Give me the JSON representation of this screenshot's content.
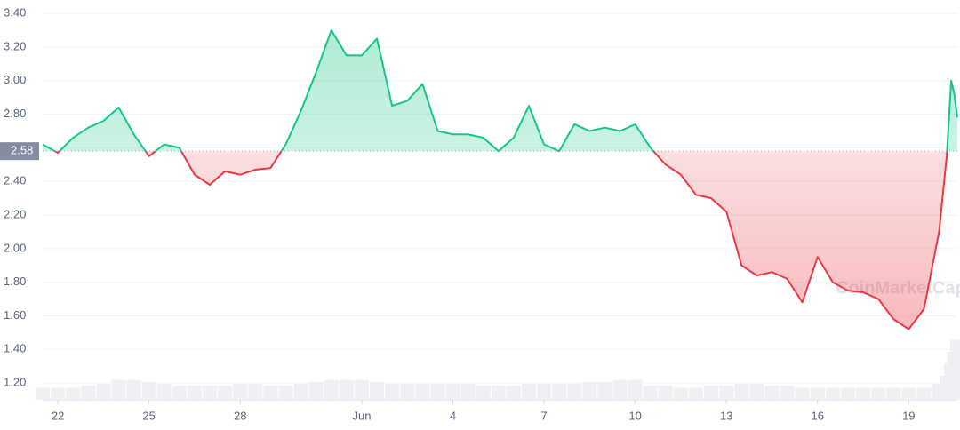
{
  "chart_data": {
    "type": "line",
    "x": [
      -0.5,
      0,
      0.5,
      1,
      1.5,
      2,
      2.5,
      3,
      3.5,
      4,
      4.5,
      5,
      5.5,
      6,
      6.5,
      7,
      7.5,
      8,
      8.5,
      9,
      9.5,
      10,
      10.5,
      11,
      11.5,
      12,
      12.5,
      13,
      13.5,
      14,
      14.5,
      15,
      15.5,
      16,
      16.5,
      17,
      17.5,
      18,
      18.5,
      19,
      19.5,
      20,
      20.5,
      21,
      21.5,
      22,
      22.5,
      23,
      23.5,
      24,
      24.5,
      25,
      25.5,
      26,
      26.5,
      27,
      27.5,
      28,
      28.5,
      29,
      29.25,
      29.4,
      29.5,
      29.6
    ],
    "series": [
      {
        "color": "#16c784",
        "color_below": "#ea3943",
        "values": [
          2.62,
          2.57,
          2.66,
          2.72,
          2.76,
          2.84,
          2.68,
          2.55,
          2.62,
          2.6,
          2.44,
          2.38,
          2.46,
          2.44,
          2.47,
          2.48,
          2.62,
          2.82,
          3.05,
          3.3,
          3.15,
          3.15,
          3.25,
          2.85,
          2.88,
          2.98,
          2.7,
          2.68,
          2.68,
          2.66,
          2.58,
          2.66,
          2.85,
          2.62,
          2.58,
          2.74,
          2.7,
          2.72,
          2.7,
          2.74,
          2.6,
          2.5,
          2.44,
          2.32,
          2.3,
          2.22,
          1.9,
          1.84,
          1.86,
          1.82,
          1.68,
          1.95,
          1.8,
          1.75,
          1.74,
          1.7,
          1.58,
          1.52,
          1.64,
          2.1,
          2.55,
          3.0,
          2.92,
          2.78
        ]
      },
      {
        "axis": "y2",
        "color": "#eef0f3",
        "values": [
          3,
          3,
          3,
          3.5,
          4,
          5,
          5,
          4.5,
          4,
          3.5,
          3.5,
          3.5,
          3.5,
          4,
          4,
          3.5,
          3.5,
          4,
          4.5,
          5,
          5,
          5,
          4.5,
          4,
          4,
          4,
          4,
          4,
          4,
          3.5,
          3.5,
          3.5,
          4,
          4,
          4,
          4,
          4.5,
          4.5,
          5,
          5,
          3.5,
          3.5,
          3,
          3,
          3.5,
          3.5,
          4,
          4,
          3.5,
          3.5,
          3,
          3,
          3,
          3,
          3,
          3,
          3,
          3,
          3,
          4,
          6,
          9,
          12,
          15
        ]
      }
    ],
    "baseline": 2.58,
    "xlim": [
      -0.5,
      29.6
    ],
    "xticks": [
      {
        "value": 0,
        "label": "22"
      },
      {
        "value": 3,
        "label": "25"
      },
      {
        "value": 6,
        "label": "28"
      },
      {
        "value": 10,
        "label": "Jun"
      },
      {
        "value": 13,
        "label": "4"
      },
      {
        "value": 16,
        "label": "7"
      },
      {
        "value": 19,
        "label": "10"
      },
      {
        "value": 22,
        "label": "13"
      },
      {
        "value": 25,
        "label": "16"
      },
      {
        "value": 28,
        "label": "19"
      }
    ],
    "ylim": [
      1.1,
      3.48
    ],
    "yticks": [
      {
        "value": 1.2,
        "label": "1.20"
      },
      {
        "value": 1.4,
        "label": "1.40"
      },
      {
        "value": 1.6,
        "label": "1.60"
      },
      {
        "value": 1.8,
        "label": "1.80"
      },
      {
        "value": 2,
        "label": "2.00"
      },
      {
        "value": 2.2,
        "label": "2.20"
      },
      {
        "value": 2.4,
        "label": "2.40"
      },
      {
        "value": 2.6,
        "label": "2.60"
      },
      {
        "value": 2.8,
        "label": "2.80"
      },
      {
        "value": 3,
        "label": "3.00"
      },
      {
        "value": 3.2,
        "label": "3.20"
      },
      {
        "value": 3.4,
        "label": "3.40"
      }
    ],
    "y2lim": [
      0,
      100
    ],
    "grid": true,
    "watermark": "CoinMarketCap"
  }
}
